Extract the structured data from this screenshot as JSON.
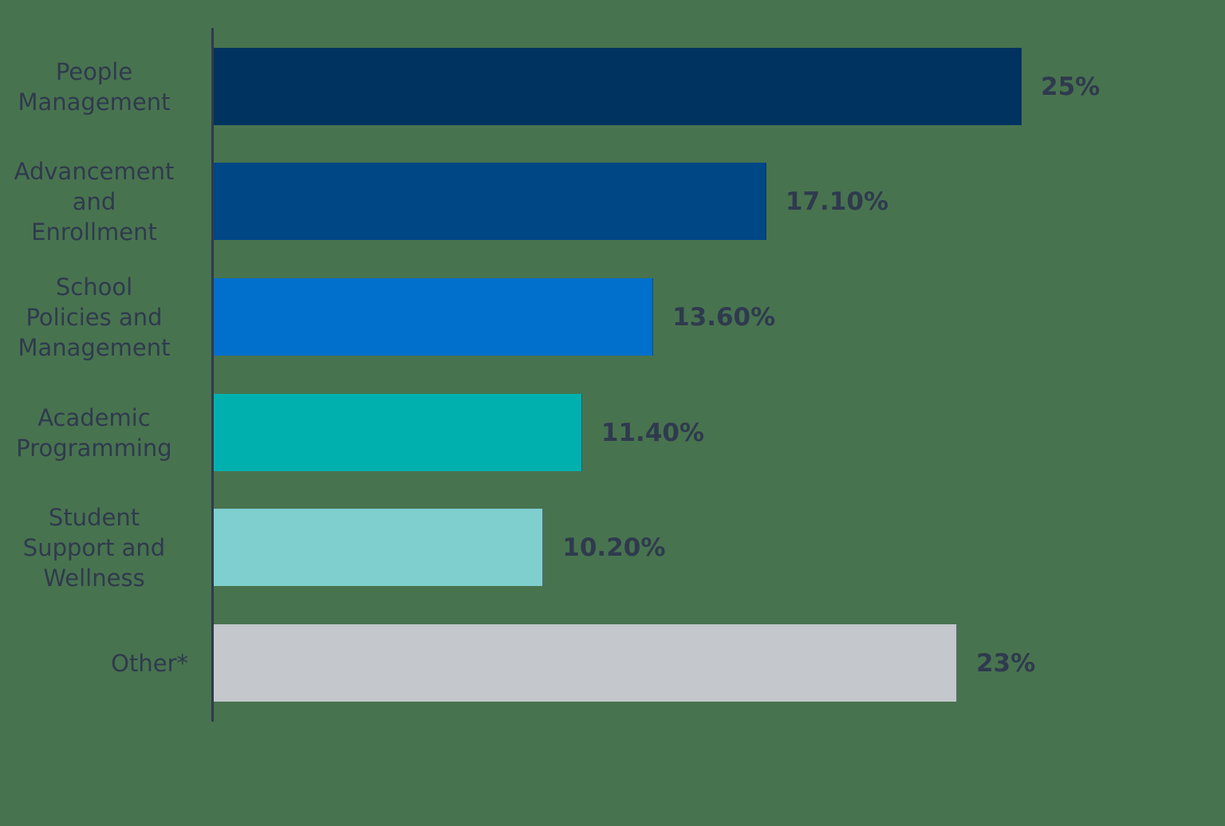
{
  "chart_data": {
    "type": "bar",
    "orientation": "horizontal",
    "title": "",
    "xlabel": "",
    "ylabel": "",
    "categories": [
      "People\nManagement",
      "Advancement\nand\nEnrollment",
      "School\nPolicies and\nManagement",
      "Academic\nProgramming",
      "Student\nSupport and\nWellness",
      "Other*"
    ],
    "values": [
      25,
      17.1,
      13.6,
      11.4,
      10.2,
      23
    ],
    "value_labels": [
      "25%",
      "17.10%",
      "13.60%",
      "11.40%",
      "10.20%",
      "23%"
    ],
    "colors": [
      "#00335f",
      "#004785",
      "#0070cc",
      "#00b0ae",
      "#7fcfcf",
      "#c4c8cc"
    ],
    "xlim": [
      0,
      25
    ],
    "grid": false,
    "legend": "none",
    "background": "#48734f",
    "text_color": "#2f3a4e"
  },
  "bars": [
    {
      "label": "People\nManagement",
      "value_label": "25%"
    },
    {
      "label": "Advancement\nand\nEnrollment",
      "value_label": "17.10%"
    },
    {
      "label": "School\nPolicies and\nManagement",
      "value_label": "13.60%"
    },
    {
      "label": "Academic\nProgramming",
      "value_label": "11.40%"
    },
    {
      "label": "Student\nSupport and\nWellness",
      "value_label": "10.20%"
    },
    {
      "label": "Other*",
      "value_label": "23%"
    }
  ]
}
